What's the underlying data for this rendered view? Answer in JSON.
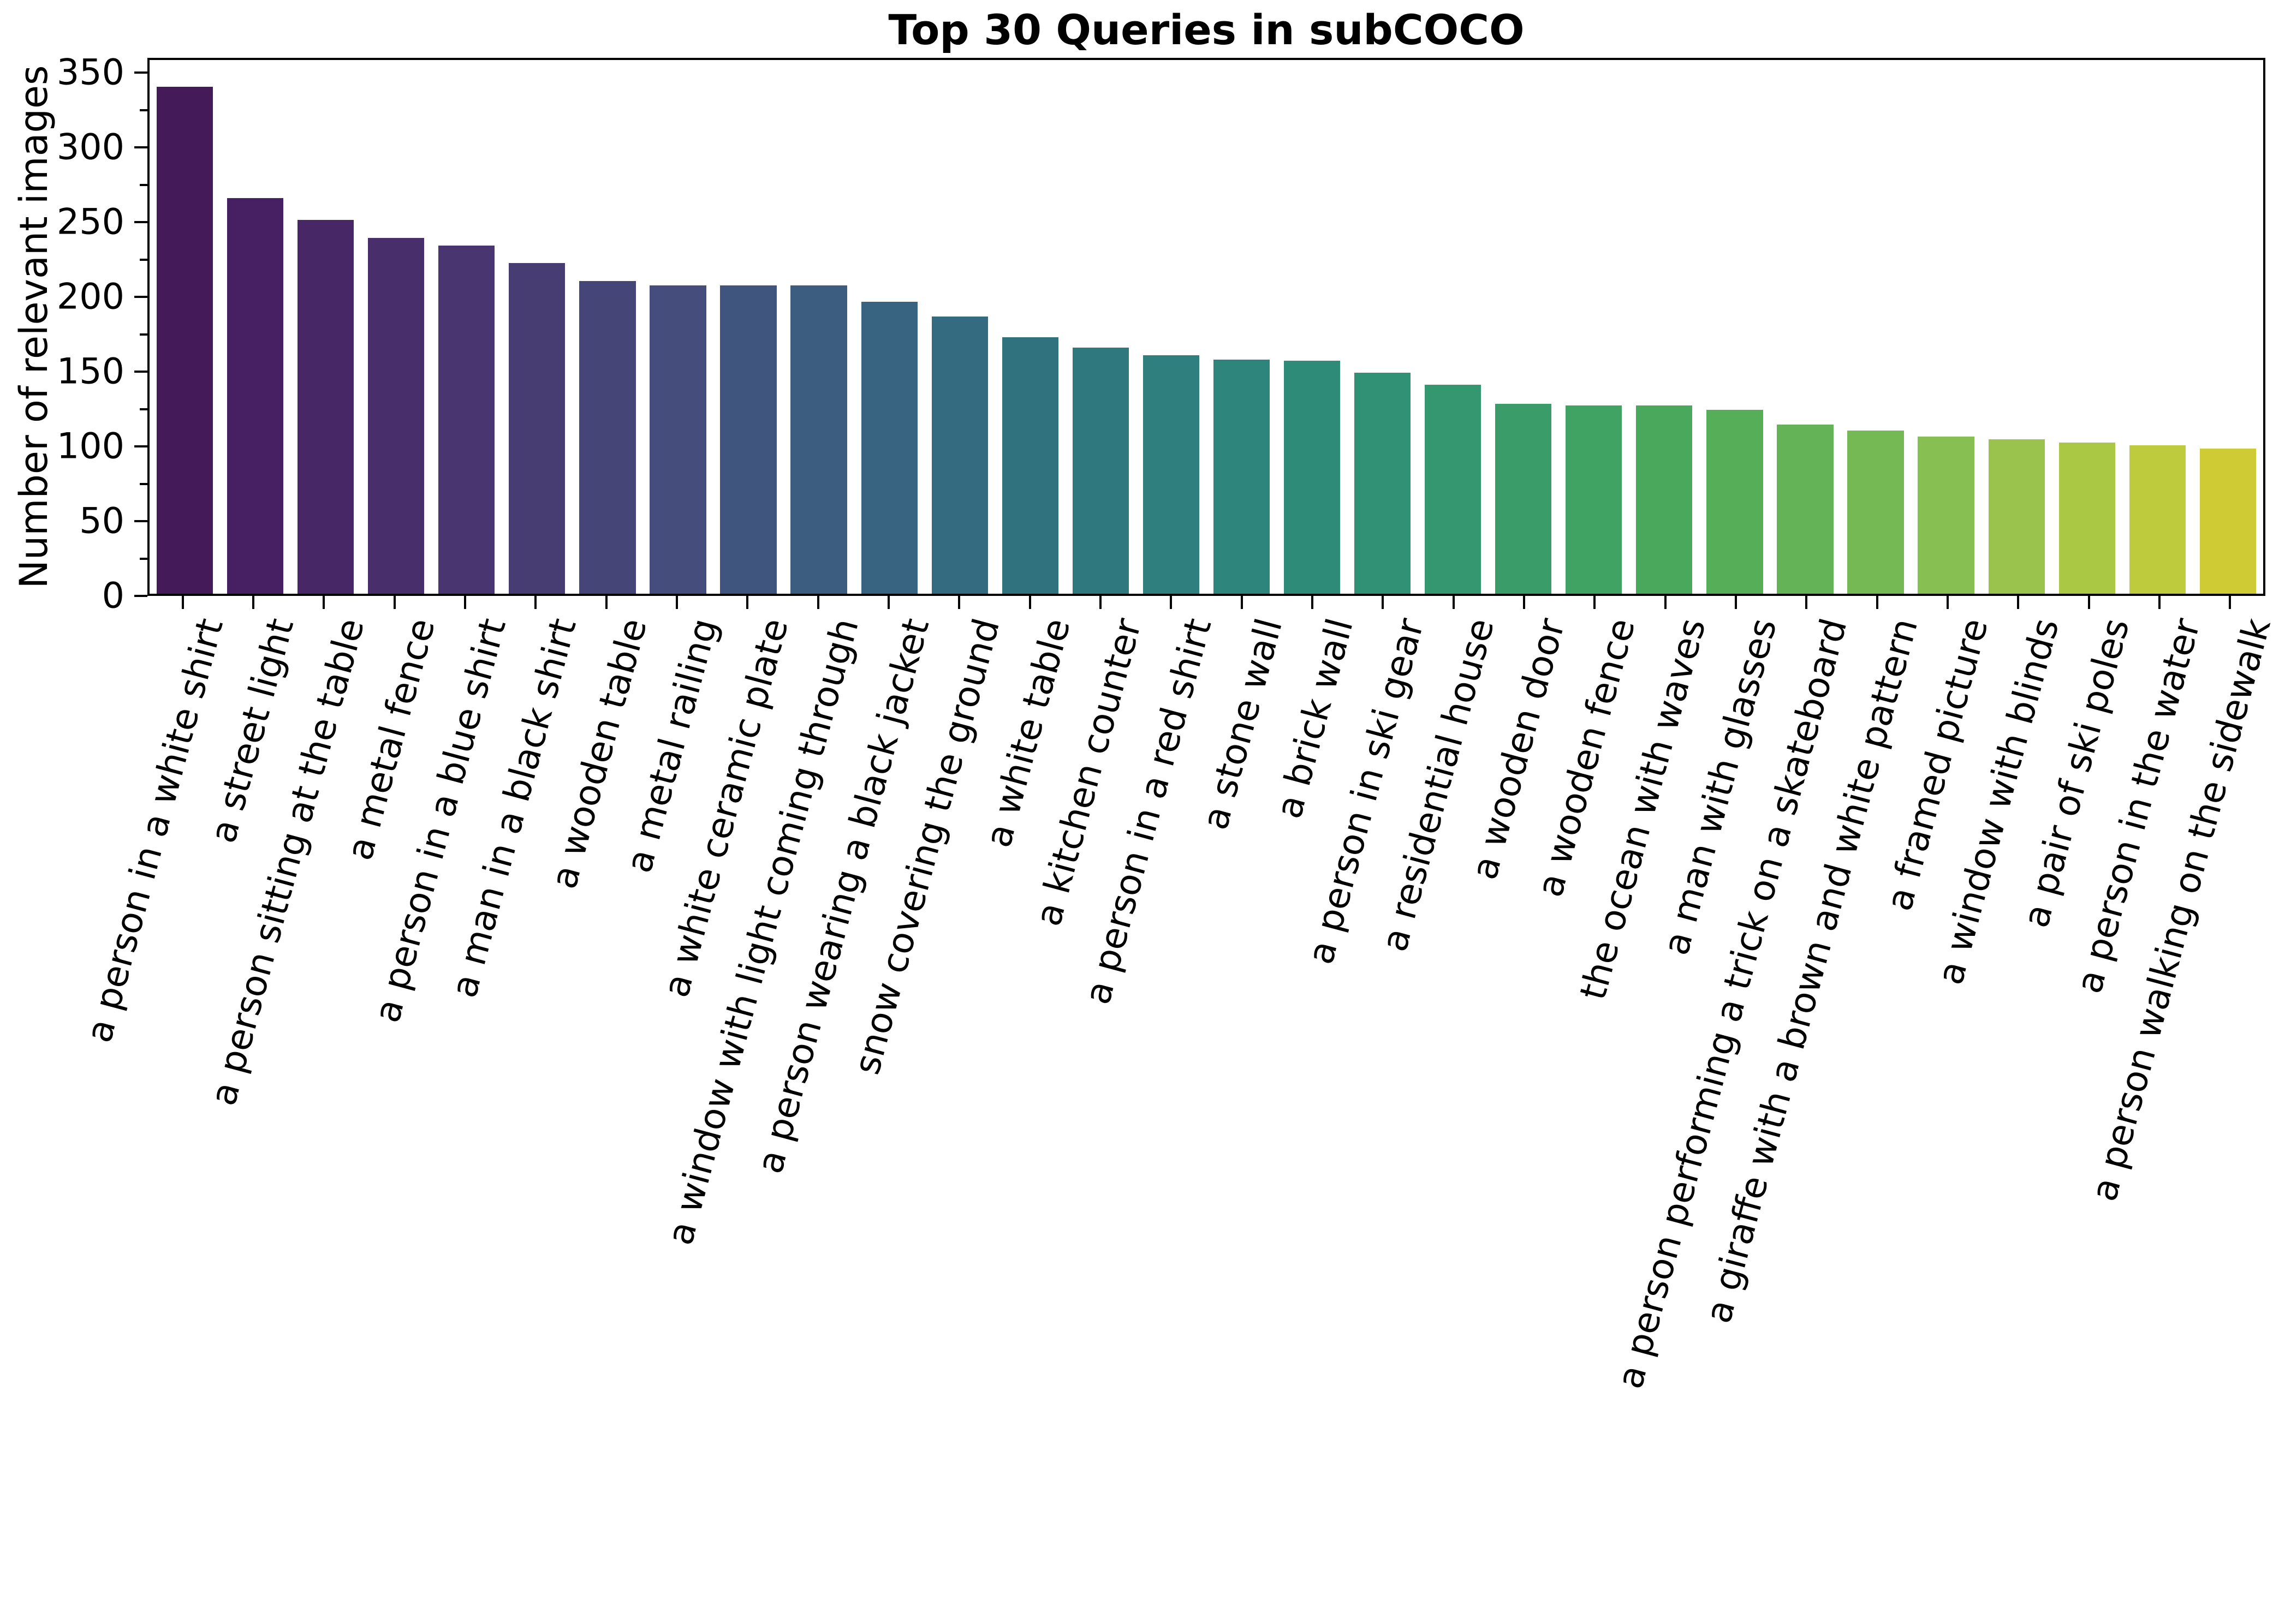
{
  "chart_data": {
    "type": "bar",
    "title": "Top 30 Queries in subCOCO",
    "xlabel": "",
    "ylabel": "Number of relevant images",
    "categories": [
      "a person in a white shirt",
      "a street light",
      "a person sitting at the table",
      "a metal fence",
      "a person in a blue shirt",
      "a man in a black shirt",
      "a wooden table",
      "a metal railing",
      "a white ceramic plate",
      "a window with light coming through",
      "a person wearing a black jacket",
      "snow covering the ground",
      "a white table",
      "a kitchen counter",
      "a person in a red shirt",
      "a stone wall",
      "a brick wall",
      "a person in ski gear",
      "a residential house",
      "a wooden door",
      "a wooden fence",
      "the ocean with waves",
      "a man with glasses",
      "a person performing a trick on a skateboard",
      "a giraffe with a brown and white pattern",
      "a framed picture",
      "a window with blinds",
      "a pair of ski poles",
      "a person in the water",
      "a person walking on the sidewalk"
    ],
    "values": [
      342,
      267,
      252,
      240,
      235,
      223,
      211,
      208,
      208,
      208,
      197,
      187,
      173,
      166,
      161,
      158,
      157,
      149,
      141,
      128,
      127,
      127,
      124,
      114,
      110,
      106,
      104,
      102,
      100,
      98
    ],
    "bar_colors": [
      "#441a59",
      "#462063",
      "#472766",
      "#482e6a",
      "#49356f",
      "#483d73",
      "#464577",
      "#444d7b",
      "#40557e",
      "#3c5c80",
      "#386481",
      "#356b80",
      "#31727f",
      "#2f787e",
      "#2e7f7d",
      "#2e857b",
      "#2e8b78",
      "#309174",
      "#34976f",
      "#3a9d69",
      "#41a363",
      "#4aa85d",
      "#56ae58",
      "#64b356",
      "#75b955",
      "#87bf53",
      "#99c34d",
      "#abc845",
      "#bdcb3d",
      "#cfcb35"
    ],
    "colormap": "viridis",
    "ylim": [
      0,
      360
    ],
    "yticks": [
      0,
      50,
      100,
      150,
      200,
      250,
      300,
      350
    ],
    "minor_yticks": [
      25,
      75,
      125,
      175,
      225,
      275,
      325
    ],
    "x_tick_rotation_deg": 75,
    "grid": false,
    "legend_position": "none"
  }
}
